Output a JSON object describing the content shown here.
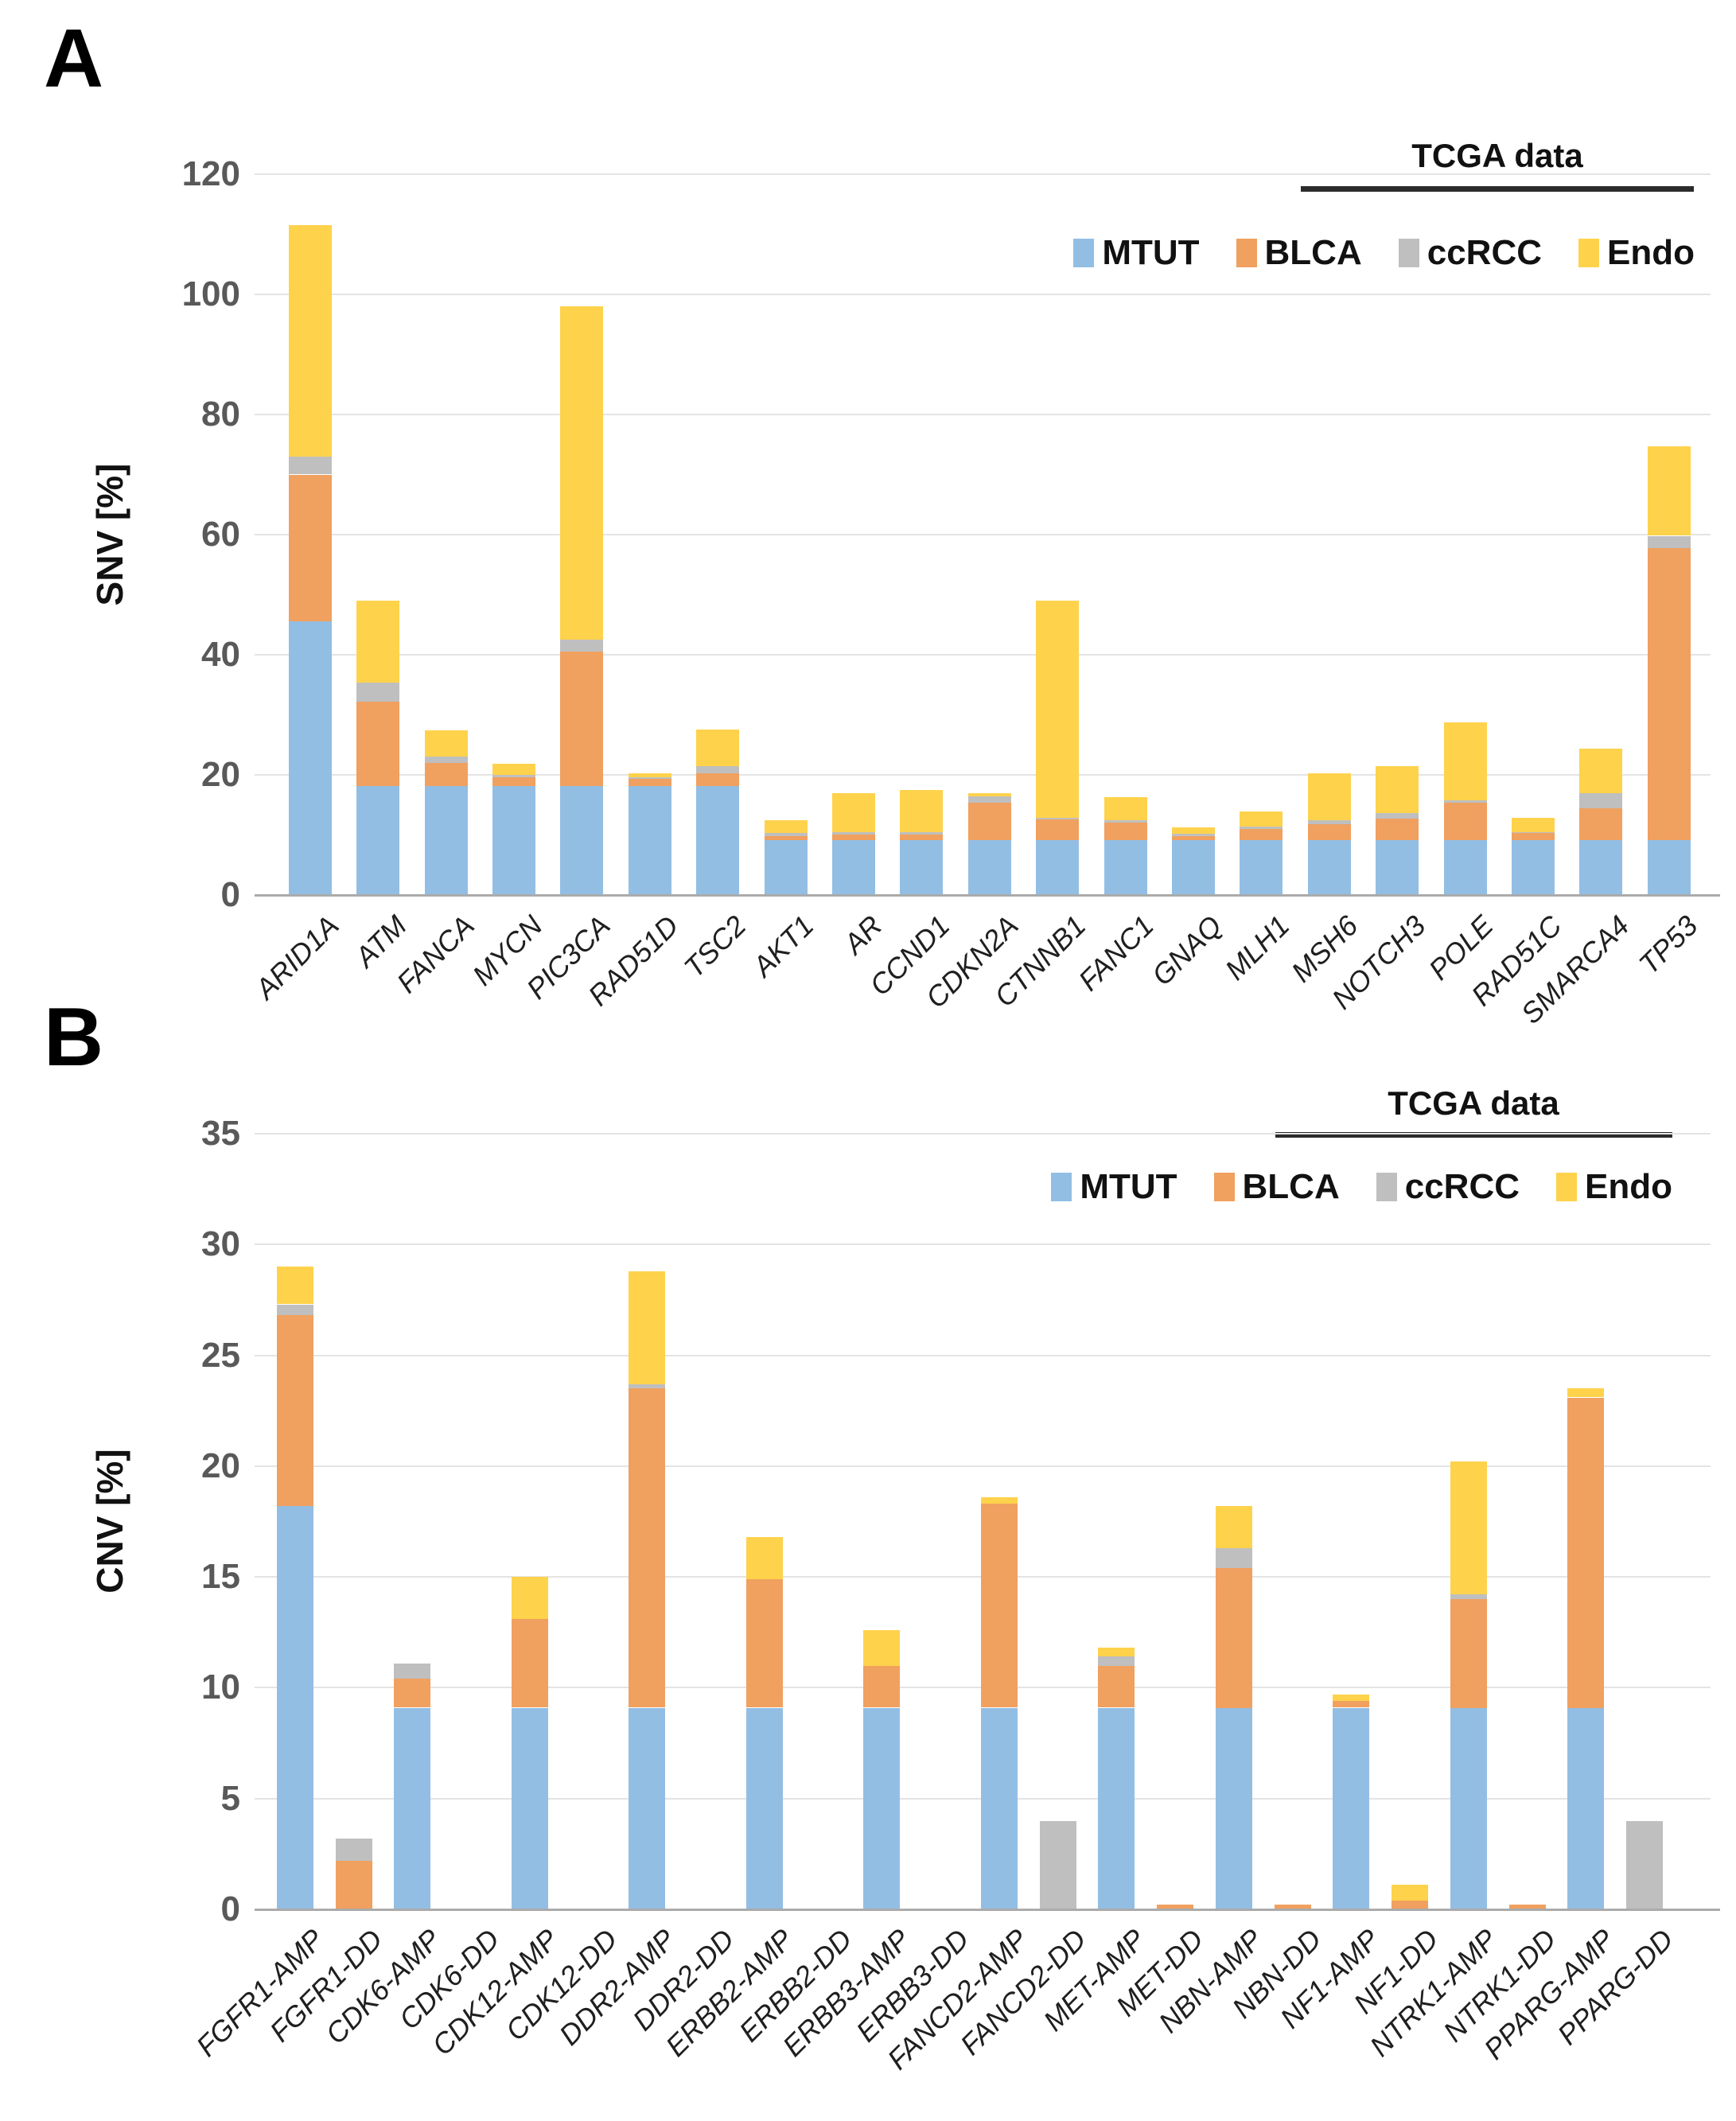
{
  "figure": {
    "background": "#ffffff",
    "panels": [
      "A",
      "B"
    ]
  },
  "style": {
    "gridline_color": "#e4e4e4",
    "axis_line_color": "#ababab",
    "tick_label_color": "#595959",
    "text_color": "#111111"
  },
  "chart_data": [
    {
      "type": "bar",
      "stacked": true,
      "panel_label": "A",
      "title": "",
      "xlabel": "",
      "ylabel": "SNV [%]",
      "ylim": [
        0,
        120
      ],
      "yticks": [
        0,
        20,
        40,
        60,
        80,
        100,
        120
      ],
      "grid": "horizontal",
      "legend_position": "top-right",
      "legend_group_label": "TCGA data",
      "legend_group_members": [
        "BLCA",
        "ccRCC",
        "Endo"
      ],
      "categories": [
        "ARID1A",
        "ATM",
        "FANCA",
        "MYCN",
        "PIC3CA",
        "RAD51D",
        "TSC2",
        "AKT1",
        "AR",
        "CCND1",
        "CDKN2A",
        "CTNNB1",
        "FANC1",
        "GNAQ",
        "MLH1",
        "MSH6",
        "NOTCH3",
        "POLE",
        "RAD51C",
        "SMARCA4",
        "TP53"
      ],
      "series": [
        {
          "name": "MTUT",
          "color": "#92BEE4",
          "values": [
            45.5,
            18.2,
            18.2,
            18.2,
            18.2,
            18.2,
            18.2,
            9.1,
            9.1,
            9.1,
            9.1,
            9.1,
            9.1,
            9.1,
            9.1,
            9.1,
            9.1,
            9.1,
            9.1,
            9.1,
            9.1
          ]
        },
        {
          "name": "BLCA",
          "color": "#F0A05F",
          "values": [
            24.5,
            14.0,
            3.8,
            1.4,
            22.3,
            1.2,
            2.0,
            0.7,
            1.0,
            1.0,
            6.3,
            3.5,
            3.0,
            0.7,
            1.9,
            2.7,
            3.6,
            6.3,
            1.2,
            5.4,
            48.7
          ]
        },
        {
          "name": "ccRCC",
          "color": "#BFBFBF",
          "values": [
            3.0,
            3.2,
            1.0,
            0.4,
            2.0,
            0.2,
            1.3,
            0.5,
            0.3,
            0.3,
            1.0,
            0.3,
            0.4,
            0.4,
            0.4,
            0.7,
            0.9,
            0.4,
            0.2,
            2.5,
            2.0
          ]
        },
        {
          "name": "Endo",
          "color": "#FFD24C",
          "values": [
            38.5,
            13.6,
            4.4,
            1.9,
            55.5,
            0.6,
            6.0,
            2.2,
            6.5,
            7.1,
            0.5,
            36.1,
            3.8,
            1.1,
            2.5,
            7.7,
            7.8,
            12.9,
            2.3,
            7.4,
            14.9
          ]
        }
      ]
    },
    {
      "type": "bar",
      "stacked": true,
      "panel_label": "B",
      "title": "",
      "xlabel": "",
      "ylabel": "CNV [%]",
      "ylim": [
        0,
        35
      ],
      "yticks": [
        0,
        5,
        10,
        15,
        20,
        25,
        30,
        35
      ],
      "grid": "horizontal",
      "legend_position": "top-right",
      "legend_group_label": "TCGA data",
      "legend_group_members": [
        "BLCA",
        "ccRCC",
        "Endo"
      ],
      "categories": [
        "FGFR1-AMP",
        "FGFR1-DD",
        "CDK6-AMP",
        "CDK6-DD",
        "CDK12-AMP",
        "CDK12-DD",
        "DDR2-AMP",
        "DDR2-DD",
        "ERBB2-AMP",
        "ERBB2-DD",
        "ERBB3-AMP",
        "ERBB3-DD",
        "FANCD2-AMP",
        "FANCD2-DD",
        "MET-AMP",
        "MET-DD",
        "NBN-AMP",
        "NBN-DD",
        "NF1-AMP",
        "NF1-DD",
        "NTRK1-AMP",
        "NTRK1-DD",
        "PPARG-AMP",
        "PPARG-DD"
      ],
      "series": [
        {
          "name": "MTUT",
          "color": "#92BEE4",
          "values": [
            18.2,
            0,
            9.1,
            0,
            9.1,
            0,
            9.1,
            0,
            9.1,
            0,
            9.1,
            0,
            9.1,
            0,
            9.1,
            0,
            9.1,
            0,
            9.1,
            0,
            9.1,
            0,
            9.1,
            0
          ]
        },
        {
          "name": "BLCA",
          "color": "#F0A05F",
          "values": [
            8.6,
            2.2,
            1.3,
            0,
            4.0,
            0,
            14.4,
            0,
            5.8,
            0,
            1.9,
            0,
            9.2,
            0,
            1.9,
            0.2,
            6.3,
            0.2,
            0.3,
            0.4,
            4.9,
            0.2,
            14.0,
            0
          ]
        },
        {
          "name": "ccRCC",
          "color": "#BFBFBF",
          "values": [
            0.5,
            1.0,
            0.7,
            0,
            0,
            0,
            0.2,
            0,
            0,
            0,
            0,
            0,
            0,
            4.0,
            0.4,
            0,
            0.9,
            0,
            0,
            0,
            0.2,
            0,
            0,
            4.0
          ]
        },
        {
          "name": "Endo",
          "color": "#FFD24C",
          "values": [
            1.7,
            0,
            0,
            0,
            1.9,
            0,
            5.1,
            0,
            1.9,
            0,
            1.6,
            0,
            0.3,
            0,
            0.4,
            0,
            1.9,
            0,
            0.3,
            0.7,
            6.0,
            0,
            0.4,
            0
          ]
        }
      ]
    }
  ]
}
